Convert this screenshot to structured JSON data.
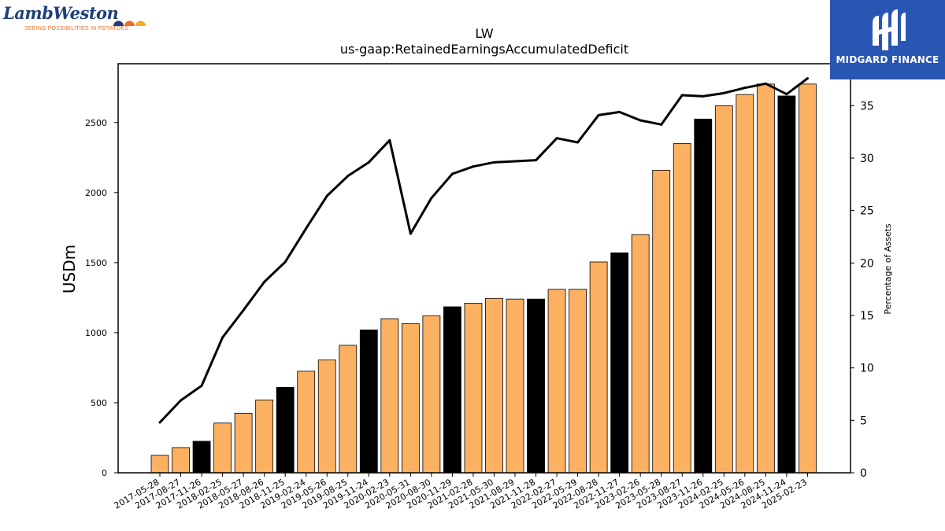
{
  "logos": {
    "left_name": "LambWeston",
    "left_tagline": "SEEING POSSIBILITIES IN POTATOES",
    "right_name": "MIDGARD FINANCE"
  },
  "colors": {
    "bar_default": "#fbb161",
    "bar_highlight": "#000000",
    "line": "#000000",
    "logo_left_text": "#1f3f7a",
    "logo_left_tag": "#e8702a",
    "logo_right_bg": "#2a56b3"
  },
  "chart_data": {
    "type": "bar",
    "title": "LW",
    "subtitle": "us-gaap:RetainedEarningsAccumulatedDeficit",
    "xlabel": "",
    "ylabel": "USDm",
    "y2label": "Percentage of Assets",
    "ylim": [
      0,
      2920
    ],
    "y2lim": [
      0,
      39
    ],
    "yticks": [
      0,
      500,
      1000,
      1500,
      2000,
      2500
    ],
    "y2ticks": [
      0,
      5,
      10,
      15,
      20,
      25,
      30,
      35
    ],
    "grid": false,
    "categories": [
      "2017-05-28",
      "2017-08-27",
      "2017-11-26",
      "2018-02-25",
      "2018-05-27",
      "2018-08-26",
      "2018-11-25",
      "2019-02-24",
      "2019-05-26",
      "2019-08-25",
      "2019-11-24",
      "2020-02-23",
      "2020-05-31",
      "2020-08-30",
      "2020-11-29",
      "2021-02-28",
      "2021-05-30",
      "2021-08-29",
      "2021-11-28",
      "2022-02-27",
      "2022-05-29",
      "2022-08-28",
      "2022-11-27",
      "2023-02-26",
      "2023-05-28",
      "2023-08-27",
      "2023-11-26",
      "2024-02-25",
      "2024-05-26",
      "2024-08-25",
      "2024-11-24",
      "2025-02-23"
    ],
    "series": [
      {
        "type": "bar",
        "axis": "left",
        "values": [
          125,
          180,
          225,
          355,
          425,
          520,
          610,
          725,
          805,
          910,
          1020,
          1100,
          1065,
          1120,
          1185,
          1210,
          1245,
          1240,
          1240,
          1310,
          1310,
          1505,
          1570,
          1700,
          2160,
          2350,
          2525,
          2620,
          2700,
          2775,
          2690,
          2775
        ],
        "highlight": [
          false,
          false,
          true,
          false,
          false,
          false,
          true,
          false,
          false,
          false,
          true,
          false,
          false,
          false,
          true,
          false,
          false,
          false,
          true,
          false,
          false,
          false,
          true,
          false,
          false,
          false,
          true,
          false,
          false,
          false,
          true,
          false
        ]
      },
      {
        "type": "line",
        "axis": "right",
        "values": [
          4.8,
          6.9,
          8.3,
          12.9,
          15.5,
          18.2,
          20.1,
          23.3,
          26.4,
          28.3,
          29.6,
          31.7,
          22.8,
          26.2,
          28.5,
          29.2,
          29.6,
          29.7,
          29.8,
          31.9,
          31.5,
          34.1,
          34.4,
          33.6,
          33.2,
          36.0,
          35.9,
          36.2,
          36.7,
          37.1,
          36.1,
          37.6
        ]
      }
    ]
  }
}
